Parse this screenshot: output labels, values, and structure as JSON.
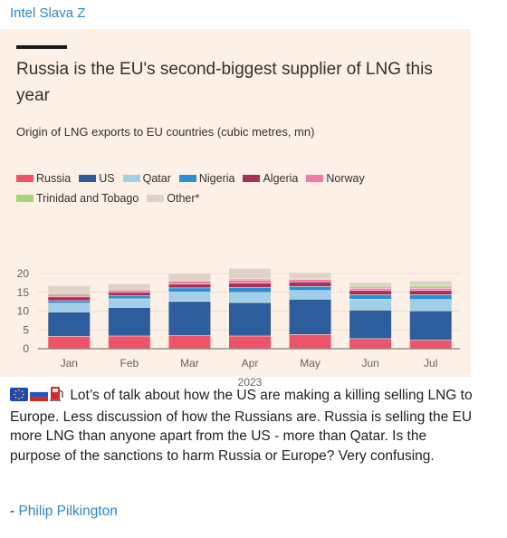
{
  "channel": {
    "name": "Intel Slava Z"
  },
  "chart_data": {
    "type": "bar",
    "stacked": true,
    "title": "Russia is the EU's second-biggest supplier of LNG this year",
    "subtitle": "Origin of LNG exports to EU countries (cubic metres, mn)",
    "categories": [
      "Jan",
      "Feb",
      "Mar",
      "Apr",
      "May",
      "Jun",
      "Jul"
    ],
    "xlabel": "2023",
    "ylim": [
      0,
      20
    ],
    "yticks": [
      0,
      5,
      10,
      15,
      20
    ],
    "grid": true,
    "legend_position": "top-left",
    "series": [
      {
        "name": "Russia",
        "color": "#ee5469",
        "values": [
          3.2,
          3.3,
          3.4,
          3.3,
          3.7,
          2.6,
          2.2
        ]
      },
      {
        "name": "US",
        "color": "#2e5d9e",
        "values": [
          6.5,
          7.6,
          9.1,
          8.9,
          9.4,
          7.6,
          7.8
        ]
      },
      {
        "name": "Qatar",
        "color": "#a2cfe8",
        "values": [
          2.3,
          2.3,
          2.5,
          2.7,
          2.3,
          2.9,
          3.0
        ]
      },
      {
        "name": "Nigeria",
        "color": "#2a8fd4",
        "values": [
          0.7,
          0.8,
          1.1,
          1.3,
          1.1,
          1.2,
          1.3
        ]
      },
      {
        "name": "Algeria",
        "color": "#a92d55",
        "values": [
          1.0,
          0.9,
          1.0,
          1.2,
          1.2,
          1.1,
          1.1
        ]
      },
      {
        "name": "Norway",
        "color": "#f27aa6",
        "values": [
          0.6,
          0.6,
          0.8,
          0.8,
          0.6,
          0.6,
          0.6
        ]
      },
      {
        "name": "Trinidad and Tobago",
        "color": "#a6d67a",
        "values": [
          0.4,
          0.3,
          0.3,
          0.4,
          0.3,
          0.5,
          0.6
        ]
      },
      {
        "name": "Other*",
        "color": "#ded3cb",
        "values": [
          2.0,
          1.4,
          1.7,
          2.7,
          1.6,
          1.1,
          1.4
        ]
      }
    ]
  },
  "post": {
    "flag_icons": [
      "eu-flag-icon",
      "russia-flag-icon",
      "fuel-pump-icon"
    ],
    "text": "Lot’s of talk about how the US are making a killing selling LNG to Europe. Less discussion of how the Russians are. Russia is selling the EU more LNG than anyone apart from the US - more than Qatar. Is the purpose of the sanctions to harm Russia or Europe? Very confusing.",
    "signature_prefix": "- ",
    "signature_name": "Philip Pilkington"
  }
}
